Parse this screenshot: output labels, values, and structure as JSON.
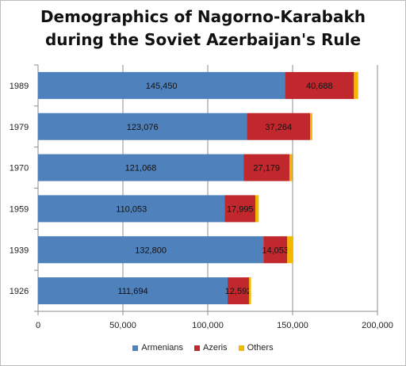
{
  "chart_data": {
    "type": "bar",
    "orientation": "horizontal",
    "stacked": true,
    "title": "Demographics of Nagorno-Karabakh during the Soviet Azerbaijan's Rule",
    "title_lines": [
      "Demographics of Nagorno-Karabakh",
      "during the Soviet Azerbaijan's Rule"
    ],
    "categories": [
      "1926",
      "1939",
      "1959",
      "1970",
      "1979",
      "1989"
    ],
    "series": [
      {
        "name": "Armenians",
        "color": "#4f81bd",
        "values": [
          111694,
          132800,
          110053,
          121068,
          123076,
          145450
        ]
      },
      {
        "name": "Azeris",
        "color": "#c0282d",
        "values": [
          12592,
          14053,
          17995,
          27179,
          37264,
          40688
        ]
      },
      {
        "name": "Others",
        "color": "#f5b800",
        "values": [
          1200,
          3600,
          2000,
          1500,
          1300,
          2500
        ]
      }
    ],
    "data_labels": {
      "Armenians": [
        "111,694",
        "132,800",
        "110,053",
        "121,068",
        "123,076",
        "145,450"
      ],
      "Azeris": [
        "12,592",
        "14,053",
        "17,995",
        "27,179",
        "37,264",
        "40,688"
      ]
    },
    "x_ticks": [
      0,
      50000,
      100000,
      150000,
      200000
    ],
    "x_tick_labels": [
      "0",
      "50,000",
      "100,000",
      "150,000",
      "200,000"
    ],
    "xlim": [
      0,
      200000
    ],
    "xlabel": "",
    "ylabel": "",
    "grid": true,
    "legend_position": "bottom"
  }
}
